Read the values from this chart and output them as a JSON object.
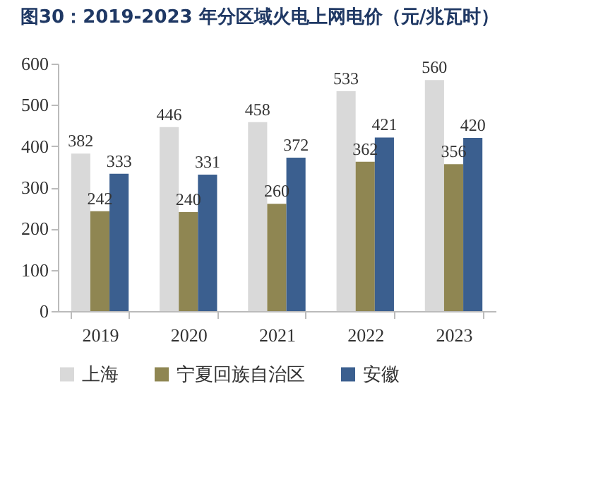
{
  "chart_data": {
    "type": "bar",
    "title": "图30：2019-2023 年分区域火电上网电价（元/兆瓦时）",
    "categories": [
      "2019",
      "2020",
      "2021",
      "2022",
      "2023"
    ],
    "series": [
      {
        "name": "上海",
        "color": "#d9d9d9",
        "values": [
          382,
          446,
          458,
          533,
          560
        ]
      },
      {
        "name": "宁夏回族自治区",
        "color": "#8f8652",
        "values": [
          242,
          240,
          260,
          362,
          356
        ]
      },
      {
        "name": "安徽",
        "color": "#3b5f8f",
        "values": [
          333,
          331,
          372,
          421,
          420
        ]
      }
    ],
    "ylim": [
      0,
      600
    ],
    "yticks": [
      0,
      100,
      200,
      300,
      400,
      500,
      600
    ],
    "grid": false,
    "legend": "bottom",
    "data_labels": true
  }
}
